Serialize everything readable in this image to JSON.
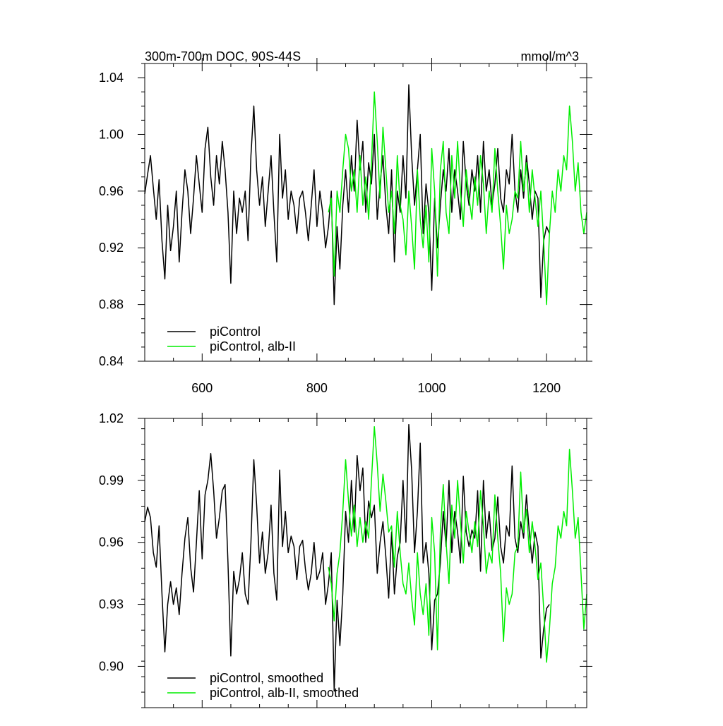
{
  "chart_data": [
    {
      "type": "line",
      "title": "300m-700m DOC, 90S-44S",
      "units": "mmol/m^3",
      "xlabel": "",
      "ylabel": "",
      "xlim": [
        500,
        1270
      ],
      "ylim": [
        0.84,
        1.05
      ],
      "xticks": [
        600,
        800,
        1000,
        1200
      ],
      "xtick_labels": [
        "600",
        "800",
        "1000",
        "1200"
      ],
      "yticks": [
        0.84,
        0.88,
        0.92,
        0.96,
        1.0,
        1.04
      ],
      "ytick_labels": [
        "0.84",
        "0.88",
        "0.92",
        "0.96",
        "1.00",
        "1.04"
      ],
      "grid": false,
      "legend_position": "bottom-left",
      "series": [
        {
          "name": "piControl",
          "color": "#000000",
          "x": [
            500,
            505,
            510,
            515,
            520,
            525,
            530,
            535,
            540,
            545,
            550,
            555,
            560,
            565,
            570,
            575,
            580,
            585,
            590,
            595,
            600,
            605,
            610,
            615,
            620,
            625,
            630,
            635,
            640,
            645,
            650,
            655,
            660,
            665,
            670,
            675,
            680,
            685,
            690,
            695,
            700,
            705,
            710,
            715,
            720,
            725,
            730,
            735,
            740,
            745,
            750,
            755,
            760,
            765,
            770,
            775,
            780,
            785,
            790,
            795,
            800,
            805,
            810,
            815,
            820,
            825,
            830,
            835,
            840,
            845,
            850,
            855,
            860,
            865,
            870,
            875,
            880,
            885,
            890,
            895,
            900,
            905,
            910,
            915,
            920,
            925,
            930,
            935,
            940,
            945,
            950,
            955,
            960,
            965,
            970,
            975,
            980,
            985,
            990,
            995,
            1000,
            1005,
            1010,
            1015,
            1020,
            1025,
            1030,
            1035,
            1040,
            1045,
            1050,
            1055,
            1060,
            1065,
            1070,
            1075,
            1080,
            1085,
            1090,
            1095,
            1100,
            1105,
            1110,
            1115,
            1120,
            1125,
            1130,
            1135,
            1140,
            1145,
            1150,
            1155,
            1160,
            1165,
            1170,
            1175,
            1180,
            1185,
            1190,
            1195,
            1200,
            1205
          ],
          "y": [
            0.958,
            0.972,
            0.985,
            0.962,
            0.94,
            0.968,
            0.925,
            0.898,
            0.95,
            0.918,
            0.935,
            0.96,
            0.91,
            0.945,
            0.975,
            0.96,
            0.93,
            0.955,
            0.985,
            0.965,
            0.945,
            0.99,
            1.005,
            0.97,
            0.95,
            0.985,
            0.965,
            0.995,
            0.975,
            0.945,
            0.895,
            0.96,
            0.93,
            0.955,
            0.945,
            0.96,
            0.925,
            0.985,
            1.02,
            0.975,
            0.95,
            0.97,
            0.935,
            0.96,
            0.985,
            0.945,
            0.91,
            1.0,
            0.955,
            0.975,
            0.94,
            0.96,
            0.95,
            0.93,
            0.955,
            0.96,
            0.945,
            0.925,
            0.95,
            0.975,
            0.935,
            0.96,
            0.945,
            0.92,
            0.935,
            0.96,
            0.88,
            0.935,
            0.905,
            0.95,
            0.975,
            0.945,
            0.985,
            0.96,
            1.01,
            0.975,
            0.995,
            0.945,
            0.98,
            0.965,
            1.0,
            0.94,
            0.965,
            0.985,
            0.95,
            0.93,
            0.975,
            0.91,
            0.96,
            0.945,
            0.985,
            0.955,
            1.035,
            0.985,
            0.95,
            0.975,
            1.0,
            0.93,
            0.965,
            0.945,
            0.89,
            0.955,
            0.92,
            0.95,
            0.975,
            0.96,
            0.99,
            0.945,
            0.975,
            0.96,
            0.94,
            0.995,
            0.965,
            0.95,
            0.975,
            0.96,
            0.985,
            0.945,
            0.995,
            0.96,
            0.975,
            0.95,
            0.965,
            0.99,
            0.955,
            0.945,
            0.975,
            0.965,
            1.0,
            0.96,
            0.945,
            0.975,
            0.955,
            0.985,
            0.965,
            0.94,
            0.96,
            0.955,
            0.885,
            0.925,
            0.935,
            0.93
          ]
        },
        {
          "name": "piControl, alb-II",
          "color": "#00ee00",
          "x": [
            820,
            825,
            830,
            835,
            840,
            845,
            850,
            855,
            860,
            865,
            870,
            875,
            880,
            885,
            890,
            895,
            900,
            905,
            910,
            915,
            920,
            925,
            930,
            935,
            940,
            945,
            950,
            955,
            960,
            965,
            970,
            975,
            980,
            985,
            990,
            995,
            1000,
            1005,
            1010,
            1015,
            1020,
            1025,
            1030,
            1035,
            1040,
            1045,
            1050,
            1055,
            1060,
            1065,
            1070,
            1075,
            1080,
            1085,
            1090,
            1095,
            1100,
            1105,
            1110,
            1115,
            1120,
            1125,
            1130,
            1135,
            1140,
            1145,
            1150,
            1155,
            1160,
            1165,
            1170,
            1175,
            1180,
            1185,
            1190,
            1195,
            1200,
            1205,
            1210,
            1215,
            1220,
            1225,
            1230,
            1235,
            1240,
            1245,
            1250,
            1255,
            1260,
            1265,
            1270
          ],
          "y": [
            0.945,
            0.955,
            0.9,
            0.96,
            0.945,
            0.975,
            1.0,
            0.99,
            0.96,
            0.975,
            0.945,
            0.985,
            0.95,
            0.97,
            0.94,
            0.98,
            1.03,
            0.995,
            0.955,
            1.005,
            0.975,
            0.945,
            0.96,
            0.93,
            0.985,
            0.95,
            0.94,
            0.915,
            0.96,
            0.935,
            0.905,
            0.975,
            0.94,
            0.92,
            0.95,
            0.91,
            0.99,
            0.96,
            0.9,
            0.975,
            0.995,
            0.945,
            0.93,
            0.985,
            0.955,
            0.995,
            0.96,
            0.935,
            0.975,
            0.955,
            0.94,
            0.97,
            0.95,
            0.985,
            0.965,
            0.93,
            0.96,
            0.945,
            0.99,
            0.96,
            0.935,
            0.905,
            0.95,
            0.93,
            0.94,
            0.96,
            0.955,
            0.995,
            0.96,
            0.98,
            0.945,
            0.975,
            0.955,
            0.935,
            0.96,
            0.925,
            0.88,
            0.93,
            0.96,
            0.945,
            0.975,
            0.96,
            0.985,
            0.975,
            1.02,
            0.995,
            0.96,
            0.98,
            0.945,
            0.93,
            0.945
          ]
        }
      ]
    },
    {
      "type": "line",
      "title": "",
      "xlabel": "",
      "ylabel": "",
      "xlim": [
        500,
        1270
      ],
      "ylim": [
        0.88,
        1.02
      ],
      "xticks": [
        600,
        800,
        1000,
        1200
      ],
      "yticks": [
        0.9,
        0.93,
        0.96,
        0.99,
        1.02
      ],
      "ytick_labels": [
        "0.90",
        "0.93",
        "0.96",
        "0.99",
        "1.02"
      ],
      "grid": false,
      "legend_position": "bottom-left",
      "series": [
        {
          "name": "piControl, smoothed",
          "color": "#000000",
          "x": [
            500,
            505,
            510,
            515,
            520,
            525,
            530,
            535,
            540,
            545,
            550,
            555,
            560,
            565,
            570,
            575,
            580,
            585,
            590,
            595,
            600,
            605,
            610,
            615,
            620,
            625,
            630,
            635,
            640,
            645,
            650,
            655,
            660,
            665,
            670,
            675,
            680,
            685,
            690,
            695,
            700,
            705,
            710,
            715,
            720,
            725,
            730,
            735,
            740,
            745,
            750,
            755,
            760,
            765,
            770,
            775,
            780,
            785,
            790,
            795,
            800,
            805,
            810,
            815,
            820,
            825,
            830,
            835,
            840,
            845,
            850,
            855,
            860,
            865,
            870,
            875,
            880,
            885,
            890,
            895,
            900,
            905,
            910,
            915,
            920,
            925,
            930,
            935,
            940,
            945,
            950,
            955,
            960,
            965,
            970,
            975,
            980,
            985,
            990,
            995,
            1000,
            1005,
            1010,
            1015,
            1020,
            1025,
            1030,
            1035,
            1040,
            1045,
            1050,
            1055,
            1060,
            1065,
            1070,
            1075,
            1080,
            1085,
            1090,
            1095,
            1100,
            1105,
            1110,
            1115,
            1120,
            1125,
            1130,
            1135,
            1140,
            1145,
            1150,
            1155,
            1160,
            1165,
            1170,
            1175,
            1180,
            1185,
            1190,
            1195,
            1200,
            1205
          ],
          "y": [
            0.97,
            0.977,
            0.972,
            0.955,
            0.948,
            0.968,
            0.935,
            0.907,
            0.93,
            0.941,
            0.93,
            0.938,
            0.925,
            0.945,
            0.962,
            0.972,
            0.948,
            0.936,
            0.96,
            0.985,
            0.952,
            0.983,
            0.99,
            1.003,
            0.985,
            0.962,
            0.972,
            0.985,
            0.988,
            0.95,
            0.905,
            0.946,
            0.935,
            0.942,
            0.955,
            0.935,
            0.93,
            0.96,
            1.0,
            0.978,
            0.95,
            0.965,
            0.945,
            0.955,
            0.978,
            0.945,
            0.932,
            0.995,
            0.958,
            0.975,
            0.955,
            0.963,
            0.958,
            0.942,
            0.958,
            0.961,
            0.947,
            0.937,
            0.945,
            0.96,
            0.942,
            0.946,
            0.955,
            0.93,
            0.94,
            0.955,
            0.888,
            0.932,
            0.91,
            0.935,
            0.975,
            0.96,
            0.99,
            0.965,
            1.002,
            0.985,
            0.996,
            0.96,
            0.98,
            0.972,
            0.978,
            0.945,
            0.96,
            0.97,
            0.953,
            0.933,
            0.965,
            0.935,
            0.953,
            0.96,
            0.99,
            0.96,
            1.017,
            0.995,
            0.955,
            0.975,
            1.008,
            0.95,
            0.96,
            0.945,
            0.908,
            0.932,
            0.935,
            0.95,
            0.975,
            0.958,
            0.99,
            0.955,
            0.975,
            0.965,
            0.95,
            0.992,
            0.965,
            0.958,
            0.966,
            0.962,
            0.985,
            0.946,
            0.99,
            0.962,
            0.975,
            0.956,
            0.962,
            0.982,
            0.958,
            0.95,
            0.968,
            0.963,
            0.997,
            0.962,
            0.955,
            0.97,
            0.962,
            0.983,
            0.965,
            0.95,
            0.965,
            0.958,
            0.904,
            0.918,
            0.928,
            0.93
          ]
        },
        {
          "name": "piControl, alb-II, smoothed",
          "color": "#00ee00",
          "x": [
            820,
            825,
            830,
            835,
            840,
            845,
            850,
            855,
            860,
            865,
            870,
            875,
            880,
            885,
            890,
            895,
            900,
            905,
            910,
            915,
            920,
            925,
            930,
            935,
            940,
            945,
            950,
            955,
            960,
            965,
            970,
            975,
            980,
            985,
            990,
            995,
            1000,
            1005,
            1010,
            1015,
            1020,
            1025,
            1030,
            1035,
            1040,
            1045,
            1050,
            1055,
            1060,
            1065,
            1070,
            1075,
            1080,
            1085,
            1090,
            1095,
            1100,
            1105,
            1110,
            1115,
            1120,
            1125,
            1130,
            1135,
            1140,
            1145,
            1150,
            1155,
            1160,
            1165,
            1170,
            1175,
            1180,
            1185,
            1190,
            1195,
            1200,
            1205,
            1210,
            1215,
            1220,
            1225,
            1230,
            1235,
            1240,
            1245,
            1250,
            1255,
            1260,
            1265,
            1270
          ],
          "y": [
            0.948,
            0.94,
            0.922,
            0.945,
            0.955,
            0.975,
            1.0,
            0.98,
            0.963,
            0.978,
            0.958,
            0.972,
            0.96,
            0.97,
            0.962,
            0.99,
            1.016,
            0.998,
            0.975,
            0.993,
            0.98,
            0.965,
            0.968,
            0.948,
            0.975,
            0.955,
            0.94,
            0.935,
            0.95,
            0.933,
            0.92,
            0.955,
            0.935,
            0.925,
            0.94,
            0.915,
            0.972,
            0.955,
            0.908,
            0.965,
            0.988,
            0.96,
            0.94,
            0.978,
            0.962,
            0.99,
            0.97,
            0.95,
            0.975,
            0.965,
            0.955,
            0.97,
            0.958,
            0.985,
            0.968,
            0.945,
            0.955,
            0.95,
            0.983,
            0.962,
            0.945,
            0.912,
            0.938,
            0.93,
            0.935,
            0.955,
            0.958,
            0.994,
            0.965,
            0.976,
            0.955,
            0.97,
            0.958,
            0.942,
            0.95,
            0.928,
            0.902,
            0.918,
            0.94,
            0.948,
            0.968,
            0.962,
            0.975,
            0.968,
            1.005,
            0.985,
            0.962,
            0.972,
            0.945,
            0.918,
            0.935
          ]
        }
      ]
    }
  ]
}
